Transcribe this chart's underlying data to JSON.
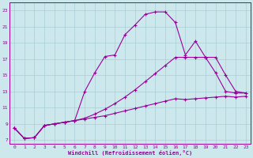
{
  "xlabel": "Windchill (Refroidissement éolien,°C)",
  "xlim": [
    -0.5,
    23.5
  ],
  "ylim": [
    6.5,
    24.0
  ],
  "xticks": [
    0,
    1,
    2,
    3,
    4,
    5,
    6,
    7,
    8,
    9,
    10,
    11,
    12,
    13,
    14,
    15,
    16,
    17,
    18,
    19,
    20,
    21,
    22,
    23
  ],
  "yticks": [
    7,
    9,
    11,
    13,
    15,
    17,
    19,
    21,
    23
  ],
  "background_color": "#cde8ec",
  "grid_color": "#aacdd4",
  "line_color": "#990099",
  "line1_x": [
    0,
    1,
    2,
    3,
    4,
    5,
    6,
    7,
    8,
    9,
    10,
    11,
    12,
    13,
    14,
    15,
    16,
    17,
    18,
    19,
    20,
    21,
    22,
    23
  ],
  "line1_y": [
    8.5,
    7.2,
    7.3,
    8.8,
    9.0,
    9.2,
    9.4,
    13.0,
    15.3,
    17.3,
    17.5,
    20.0,
    21.2,
    22.5,
    22.8,
    22.8,
    21.5,
    17.5,
    19.2,
    17.2,
    15.3,
    13.0,
    12.8,
    12.8
  ],
  "line2_x": [
    0,
    1,
    2,
    3,
    4,
    5,
    6,
    7,
    8,
    9,
    10,
    11,
    12,
    13,
    14,
    15,
    16,
    17,
    18,
    19,
    20,
    21,
    22,
    23
  ],
  "line2_y": [
    8.5,
    7.2,
    7.3,
    8.8,
    9.0,
    9.2,
    9.4,
    9.7,
    10.2,
    10.8,
    11.5,
    12.3,
    13.2,
    14.2,
    15.2,
    16.2,
    17.2,
    17.2,
    17.2,
    17.2,
    17.2,
    15.0,
    13.0,
    12.8
  ],
  "line3_x": [
    0,
    1,
    2,
    3,
    4,
    5,
    6,
    7,
    8,
    9,
    10,
    11,
    12,
    13,
    14,
    15,
    16,
    17,
    18,
    19,
    20,
    21,
    22,
    23
  ],
  "line3_y": [
    8.5,
    7.2,
    7.3,
    8.8,
    9.0,
    9.2,
    9.4,
    9.6,
    9.8,
    10.0,
    10.3,
    10.6,
    10.9,
    11.2,
    11.5,
    11.8,
    12.1,
    12.0,
    12.1,
    12.2,
    12.3,
    12.4,
    12.3,
    12.4
  ]
}
